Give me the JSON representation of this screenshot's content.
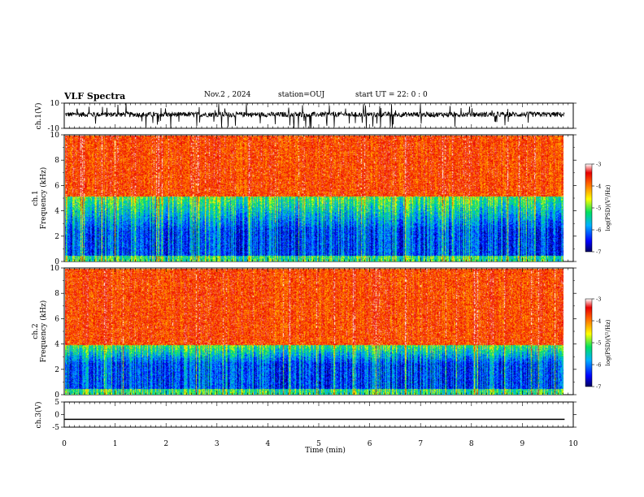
{
  "header": {
    "title": "VLF Spectra",
    "date": "Nov.2  , 2024",
    "station": "station=OUJ",
    "start": "start  UT =   22: 0  : 0"
  },
  "chart_data": [
    {
      "type": "line",
      "panel": "ch1-waveform",
      "ylabel": "ch.1(V)",
      "ylim": [
        -10,
        10
      ],
      "yticks": [
        "10",
        "-10"
      ],
      "xlim": [
        0,
        10
      ],
      "color": "#000000"
    },
    {
      "type": "heatmap",
      "panel": "ch1-spectrogram",
      "ylabel_top": "ch.1",
      "ylabel": "Frequency (kHz)",
      "ylim": [
        0,
        10
      ],
      "yticks": [
        "0",
        "2",
        "4",
        "6",
        "8",
        "10"
      ],
      "xlim": [
        0,
        9.83
      ],
      "colorbar": {
        "label": "log(PSD)(V²/Hz)",
        "range": [
          -7,
          -3
        ],
        "ticks": [
          "-3",
          "-4",
          "-5",
          "-6",
          "-7"
        ]
      }
    },
    {
      "type": "heatmap",
      "panel": "ch2-spectrogram",
      "ylabel_top": "ch.2",
      "ylabel": "Frequency (kHz)",
      "ylim": [
        0,
        10
      ],
      "yticks": [
        "0",
        "2",
        "4",
        "6",
        "8",
        "10"
      ],
      "xlim": [
        0,
        9.83
      ],
      "colorbar": {
        "label": "log(PSD)(V²/Hz)",
        "range": [
          -7,
          -3
        ],
        "ticks": [
          "-3",
          "-4",
          "-5",
          "-6",
          "-7"
        ]
      }
    },
    {
      "type": "line",
      "panel": "ch3-waveform",
      "ylabel": "ch.3(V)",
      "ylim": [
        -5,
        5
      ],
      "yticks": [
        "5",
        "0",
        "-5"
      ],
      "x": [
        0,
        9.83
      ],
      "y": [
        -1.9,
        -1.9
      ],
      "xlabel": "Time (min)",
      "xlim": [
        0,
        10
      ],
      "xticks": [
        "0",
        "1",
        "2",
        "3",
        "4",
        "5",
        "6",
        "7",
        "8",
        "9",
        "10"
      ]
    }
  ]
}
